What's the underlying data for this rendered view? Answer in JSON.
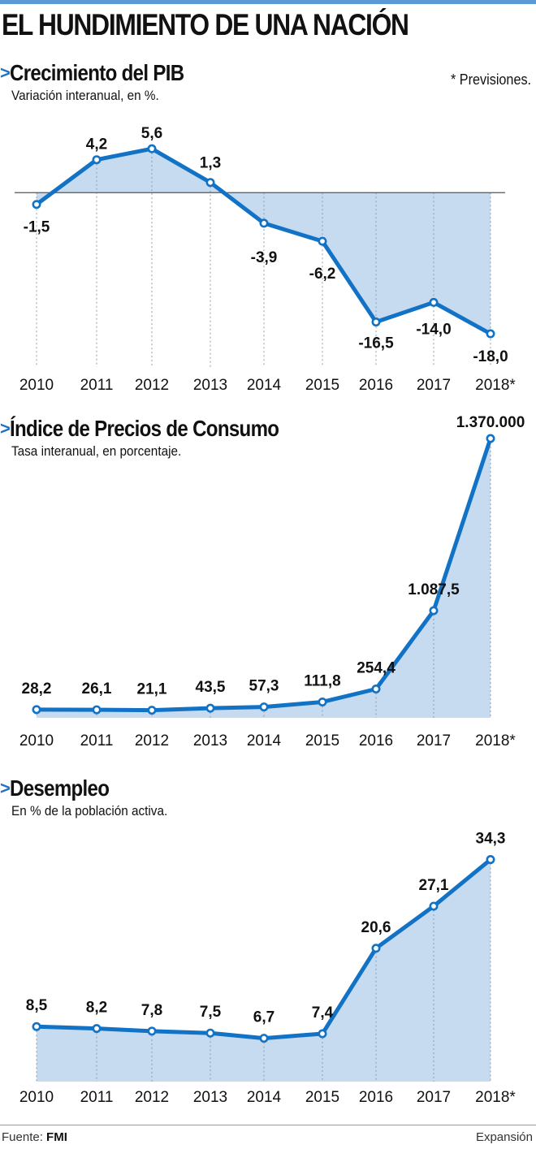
{
  "title": "EL HUNDIMIENTO DE UNA NACIÓN",
  "footer": {
    "source_label": "Fuente:",
    "source_value": "FMI",
    "publisher": "Expansión"
  },
  "colors": {
    "line": "#1273c6",
    "fill": "#c6dbf0",
    "accent_bar": "#5b9bd5"
  },
  "chart_data": [
    {
      "type": "area",
      "title": "Crecimiento del PIB",
      "subtitle": "Variación interanual, en %.",
      "note": "* Previsiones.",
      "categories": [
        "2010",
        "2011",
        "2012",
        "2013",
        "2014",
        "2015",
        "2016",
        "2017",
        "2018*"
      ],
      "values": [
        -1.5,
        4.2,
        5.6,
        1.3,
        -3.9,
        -6.2,
        -16.5,
        -14.0,
        -18.0
      ],
      "value_labels": [
        "-1,5",
        "4,2",
        "5,6",
        "1,3",
        "-3,9",
        "-6,2",
        "-16,5",
        "-14,0",
        "-18,0"
      ],
      "ylim": [
        -21,
        8
      ],
      "zero_line": true
    },
    {
      "type": "area",
      "title": "Índice de Precios de Consumo",
      "subtitle": "Tasa interanual, en porcentaje.",
      "categories": [
        "2010",
        "2011",
        "2012",
        "2013",
        "2014",
        "2015",
        "2016",
        "2017",
        "2018*"
      ],
      "values": [
        28.2,
        26.1,
        21.1,
        43.5,
        57.3,
        111.8,
        254.4,
        1087.5,
        1370000
      ],
      "value_labels": [
        "28,2",
        "26,1",
        "21,1",
        "43,5",
        "57,3",
        "111,8",
        "254,4",
        "1.087,5",
        "1.370.000"
      ],
      "ylim": [
        0,
        1370000
      ],
      "scale": "non-linear (illustrative)"
    },
    {
      "type": "area",
      "title": "Desempleo",
      "subtitle": "En % de la población activa.",
      "categories": [
        "2010",
        "2011",
        "2012",
        "2013",
        "2014",
        "2015",
        "2016",
        "2017",
        "2018*"
      ],
      "values": [
        8.5,
        8.2,
        7.8,
        7.5,
        6.7,
        7.4,
        20.6,
        27.1,
        34.3
      ],
      "value_labels": [
        "8,5",
        "8,2",
        "7,8",
        "7,5",
        "6,7",
        "7,4",
        "20,6",
        "27,1",
        "34,3"
      ],
      "ylim": [
        0,
        36
      ]
    }
  ]
}
